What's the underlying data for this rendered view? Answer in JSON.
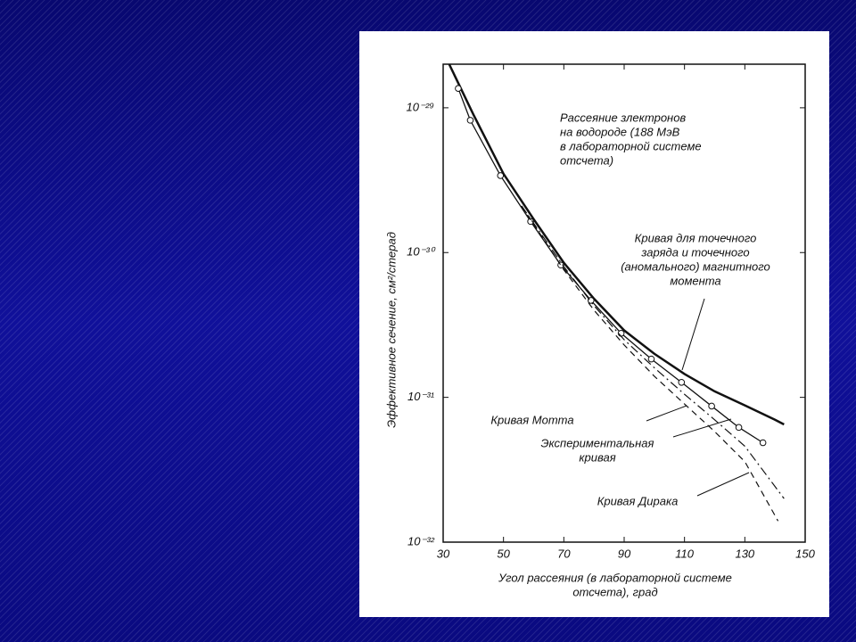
{
  "chart_data": {
    "type": "line",
    "annotation": [
      "Рассеяние злектронов",
      "на водороде (188 МэВ",
      "в лабораторной системе",
      "отсчета)"
    ],
    "x_label": [
      "Угол рассеяния (в лабораторной системе",
      "отсчета), град"
    ],
    "y_label": "Эффективное сечение, см²/стерад",
    "xlim": [
      30,
      150
    ],
    "xticks": [
      30,
      50,
      70,
      90,
      110,
      130,
      150
    ],
    "ylim": [
      1e-32,
      2e-29
    ],
    "log_y": true,
    "yticks": [
      {
        "value": 1e-32,
        "label": "10⁻³²"
      },
      {
        "value": 1e-31,
        "label": "10⁻³¹"
      },
      {
        "value": 1e-30,
        "label": "10⁻³⁰"
      },
      {
        "value": 1e-29,
        "label": "10⁻²⁹"
      }
    ],
    "series": [
      {
        "name": [
          "Кривая для точечного",
          "заряда и точечного",
          "(аномального) магнитного",
          "момента"
        ],
        "color": "#111",
        "style": "thick",
        "x": [
          32,
          40,
          50,
          60,
          70,
          80,
          90,
          100,
          110,
          120,
          130,
          140,
          143
        ],
        "values": [
          2e-29,
          9e-30,
          3.5e-30,
          1.7e-30,
          8.5e-31,
          4.8e-31,
          2.9e-31,
          2e-31,
          1.45e-31,
          1.1e-31,
          8.8e-32,
          7e-32,
          6.5e-32
        ]
      },
      {
        "name": [
          "Экспериментальная",
          "кривая"
        ],
        "color": "#111",
        "style": "points",
        "x": [
          35,
          39,
          49,
          59,
          69,
          79,
          89,
          99,
          109,
          119,
          128,
          136
        ],
        "values": [
          1.36e-29,
          8.2e-30,
          3.4e-30,
          1.64e-30,
          8.2e-31,
          4.67e-31,
          2.77e-31,
          1.84e-31,
          1.27e-31,
          8.7e-32,
          6.2e-32,
          4.86e-32
        ]
      },
      {
        "name": [
          "Кривая Мотта"
        ],
        "color": "#111",
        "style": "dashdot",
        "x": [
          56,
          70,
          80,
          90,
          100,
          110,
          120,
          130,
          143
        ],
        "values": [
          2.1e-30,
          8e-31,
          4.3e-31,
          2.5e-31,
          1.6e-31,
          1.05e-31,
          7e-32,
          4.6e-32,
          2e-32
        ]
      },
      {
        "name": [
          "Кривая Дирака"
        ],
        "color": "#111",
        "style": "dashed",
        "x": [
          56,
          70,
          80,
          90,
          100,
          110,
          120,
          130,
          141
        ],
        "values": [
          2.1e-30,
          7.6e-31,
          4e-31,
          2.3e-31,
          1.4e-31,
          9e-32,
          5.8e-32,
          3.6e-32,
          1.4e-32
        ]
      }
    ]
  }
}
